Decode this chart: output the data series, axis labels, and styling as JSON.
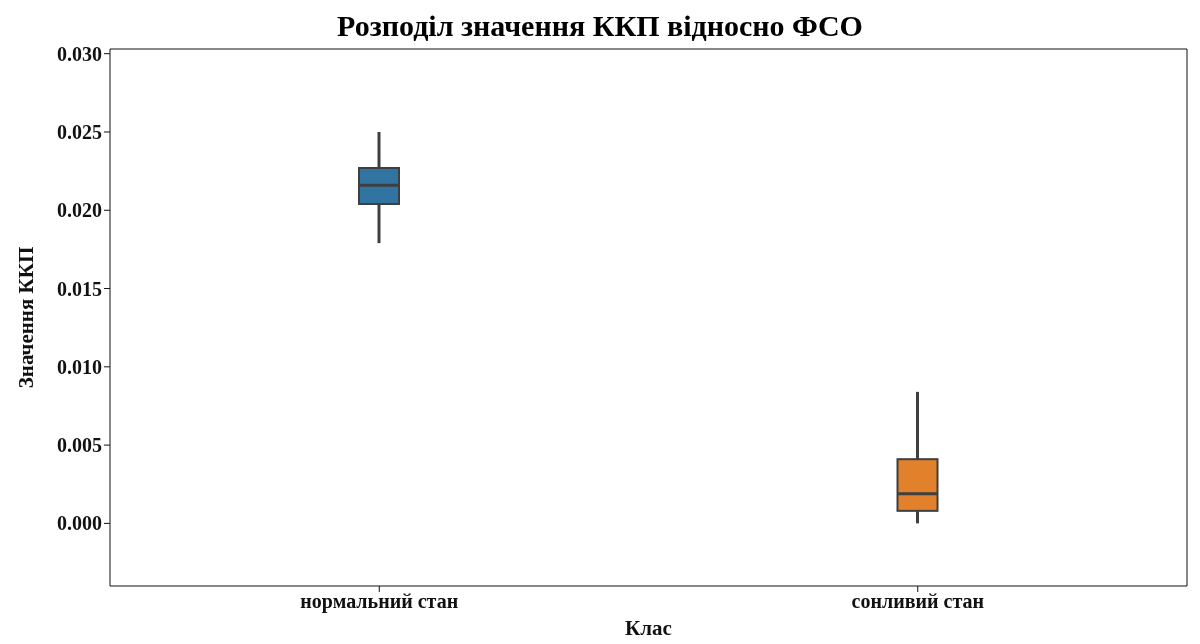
{
  "chart_data": {
    "type": "box",
    "title": "Розподіл значення ККП відносно ФСО",
    "xlabel": "Клас",
    "ylabel": "Значення ККП",
    "categories": [
      "нормальний стан",
      "сонливий стан"
    ],
    "colors": [
      "#3274a1",
      "#e1812c"
    ],
    "boxes": [
      {
        "low": 0.0179,
        "q1": 0.0204,
        "median": 0.0216,
        "q3": 0.0227,
        "high": 0.025
      },
      {
        "low": 0.0,
        "q1": 0.0008,
        "median": 0.0019,
        "q3": 0.0041,
        "high": 0.0084
      }
    ],
    "ylim": [
      -0.004,
      0.0303
    ],
    "yticks": [
      {
        "value": 0,
        "label": "0.000"
      },
      {
        "value": 0.005,
        "label": "0.005"
      },
      {
        "value": 0.01,
        "label": "0.010"
      },
      {
        "value": 0.015,
        "label": "0.015"
      },
      {
        "value": 0.02,
        "label": "0.020"
      },
      {
        "value": 0.025,
        "label": "0.025"
      },
      {
        "value": 0.03,
        "label": "0.030"
      }
    ]
  }
}
